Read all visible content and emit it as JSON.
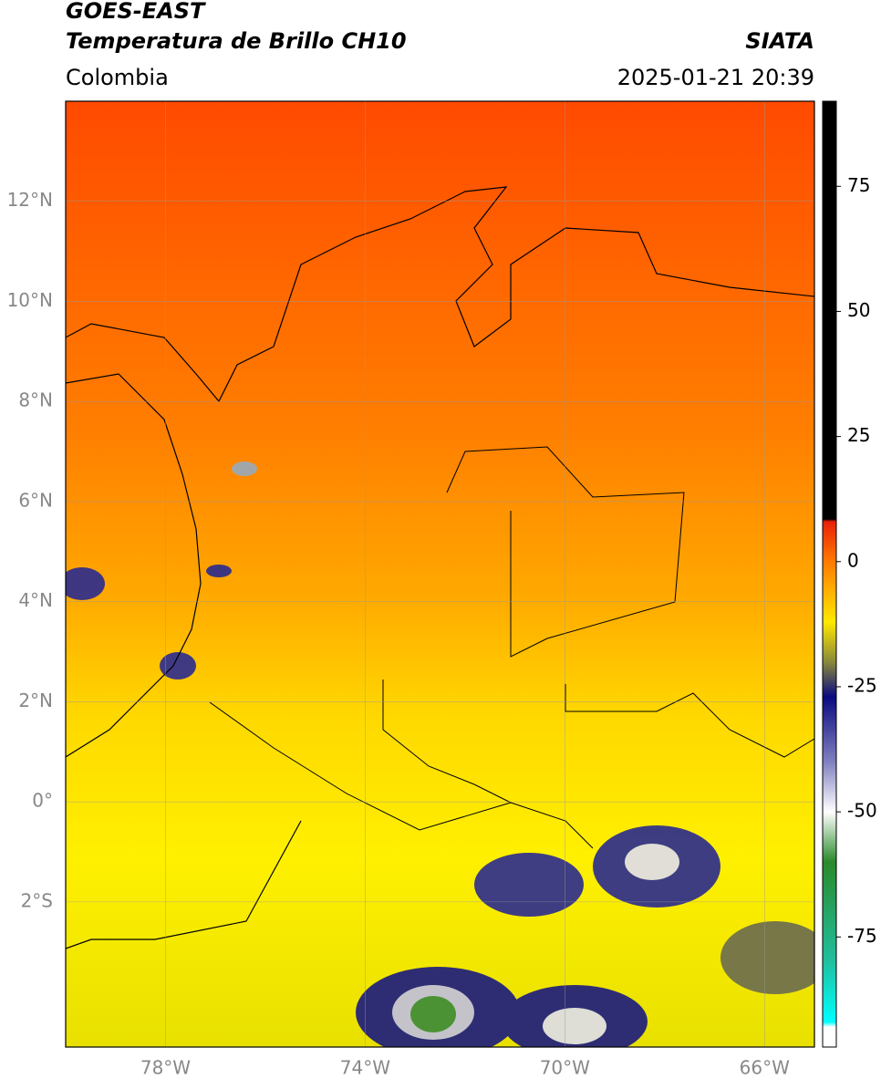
{
  "header": {
    "satellite": "GOES-EAST",
    "product": "Temperatura de Brillo CH10",
    "region": "Colombia",
    "source": "SIATA",
    "timestamp": "2025-01-21 20:39"
  },
  "map": {
    "lat_range": [
      -4.9,
      14
    ],
    "lon_range": [
      -80,
      -65
    ],
    "lat_ticks": [
      {
        "value": 12,
        "label": "12°N"
      },
      {
        "value": 10,
        "label": "10°N"
      },
      {
        "value": 8,
        "label": "8°N"
      },
      {
        "value": 6,
        "label": "6°N"
      },
      {
        "value": 4,
        "label": "4°N"
      },
      {
        "value": 2,
        "label": "2°N"
      },
      {
        "value": 0,
        "label": "0°"
      },
      {
        "value": -2,
        "label": "2°S"
      }
    ],
    "lon_ticks": [
      {
        "value": -78,
        "label": "78°W"
      },
      {
        "value": -74,
        "label": "74°W"
      },
      {
        "value": -70,
        "label": "70°W"
      },
      {
        "value": -66,
        "label": "66°W"
      }
    ]
  },
  "colorbar": {
    "range": [
      -97,
      92
    ],
    "ticks": [
      75,
      50,
      25,
      0,
      -25,
      -50,
      -75
    ],
    "colormap": [
      {
        "value": 92,
        "color": "#000000"
      },
      {
        "value": 8.5,
        "color": "#000000"
      },
      {
        "value": 8,
        "color": "#e8200a"
      },
      {
        "value": 0,
        "color": "#ff7a00"
      },
      {
        "value": -12,
        "color": "#ffe800"
      },
      {
        "value": -20,
        "color": "#8a8a3a"
      },
      {
        "value": -27,
        "color": "#0a0a80"
      },
      {
        "value": -40,
        "color": "#8080c0"
      },
      {
        "value": -50,
        "color": "#ffffff"
      },
      {
        "value": -60,
        "color": "#2a8a2a"
      },
      {
        "value": -80,
        "color": "#20c0a0"
      },
      {
        "value": -92,
        "color": "#00ffff"
      },
      {
        "value": -93,
        "color": "#ffffff"
      },
      {
        "value": -97,
        "color": "#ffffff"
      }
    ]
  }
}
